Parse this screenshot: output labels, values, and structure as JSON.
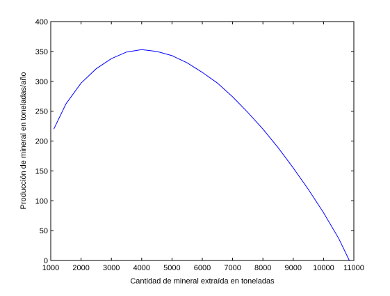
{
  "chart_data": {
    "type": "line",
    "xlabel": "Cantidad de mineral extraída en toneladas",
    "ylabel": "Producción de mineral en toneladas/año",
    "xlim": [
      1000,
      11000
    ],
    "ylim": [
      0,
      400
    ],
    "xticks": [
      1000,
      2000,
      3000,
      4000,
      5000,
      6000,
      7000,
      8000,
      9000,
      10000,
      11000
    ],
    "yticks": [
      0,
      50,
      100,
      150,
      200,
      250,
      300,
      350,
      400
    ],
    "grid": false,
    "line_color": "#0000ff",
    "series": [
      {
        "x": [
          1100,
          1500,
          2000,
          2500,
          3000,
          3500,
          4000,
          4500,
          5000,
          5500,
          6000,
          6500,
          7000,
          7500,
          8000,
          8500,
          9000,
          9500,
          10000,
          10500,
          10850
        ],
        "y": [
          220,
          262,
          297,
          321,
          338,
          349,
          353,
          350,
          343,
          331,
          315,
          297,
          274,
          248,
          220,
          189,
          155,
          119,
          80,
          37,
          0
        ]
      }
    ]
  }
}
